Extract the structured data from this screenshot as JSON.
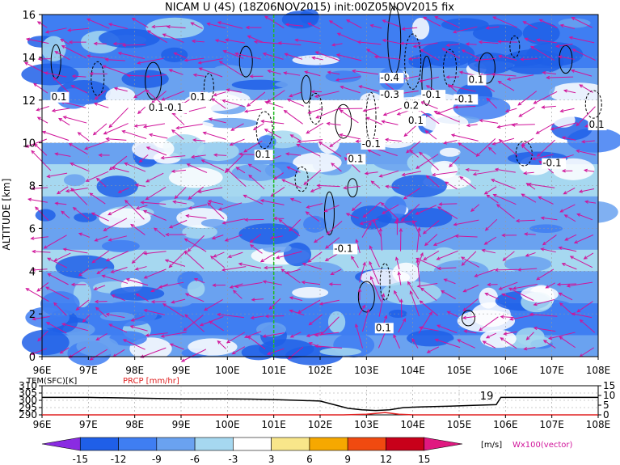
{
  "title": "NICAM U (4S) (18Z06NOV2015) init:00Z05NOV2015 fix",
  "chart_data": [
    {
      "type": "heatmap",
      "title": "NICAM U (4S) (18Z06NOV2015) init:00Z05NOV2015 fix",
      "ylabel": "ALTITUDE [km]",
      "x_ticks": [
        "96E",
        "97E",
        "98E",
        "99E",
        "100E",
        "101E",
        "102E",
        "103E",
        "104E",
        "105E",
        "106E",
        "107E",
        "108E"
      ],
      "y_ticks": [
        "0",
        "2",
        "4",
        "6",
        "8",
        "10",
        "12",
        "14",
        "16"
      ],
      "xlim": [
        96,
        108
      ],
      "ylim": [
        0,
        16
      ],
      "marker_longitude": 101,
      "layers": [
        {
          "alt_range": [
            0,
            1
          ],
          "u_value": -9
        },
        {
          "alt_range": [
            1,
            2.5
          ],
          "u_value": -12
        },
        {
          "alt_range": [
            2.5,
            4
          ],
          "u_value": -9
        },
        {
          "alt_range": [
            4,
            5
          ],
          "u_value": -6
        },
        {
          "alt_range": [
            5,
            7.5
          ],
          "u_value": -9
        },
        {
          "alt_range": [
            7.5,
            9
          ],
          "u_value": -6
        },
        {
          "alt_range": [
            9,
            10
          ],
          "u_value": -9
        },
        {
          "alt_range": [
            10,
            12
          ],
          "u_value": -3
        },
        {
          "alt_range": [
            12,
            13.5
          ],
          "u_value": -9
        },
        {
          "alt_range": [
            13.5,
            16
          ],
          "u_value": -12
        }
      ],
      "contour_labels": [
        {
          "text": "0.1",
          "lon": 96.2,
          "alt": 12.0
        },
        {
          "text": "0.1-0.1",
          "lon": 98.3,
          "alt": 11.5
        },
        {
          "text": "0.1",
          "lon": 99.2,
          "alt": 12.0
        },
        {
          "text": "0.1",
          "lon": 100.6,
          "alt": 9.3
        },
        {
          "text": "-0.4",
          "lon": 103.3,
          "alt": 12.9
        },
        {
          "text": "-0.3",
          "lon": 103.3,
          "alt": 12.1
        },
        {
          "text": "0.2",
          "lon": 103.8,
          "alt": 11.6
        },
        {
          "text": "-0.1",
          "lon": 104.2,
          "alt": 12.1
        },
        {
          "text": "-0.1",
          "lon": 104.9,
          "alt": 11.9
        },
        {
          "text": "0.1",
          "lon": 103.9,
          "alt": 10.9
        },
        {
          "text": "-0.1",
          "lon": 102.9,
          "alt": 9.8
        },
        {
          "text": "0.1",
          "lon": 102.6,
          "alt": 9.1
        },
        {
          "text": "0.1",
          "lon": 105.2,
          "alt": 12.8
        },
        {
          "text": "-0.1",
          "lon": 106.8,
          "alt": 8.9
        },
        {
          "text": "0.1",
          "lon": 107.8,
          "alt": 10.7
        },
        {
          "text": "-0.1",
          "lon": 102.3,
          "alt": 4.9
        },
        {
          "text": "0.1",
          "lon": 103.2,
          "alt": 1.2
        }
      ]
    },
    {
      "type": "line",
      "labels": {
        "tem": "TEM(SFC)[K]",
        "prcp": "PRCP [mm/hr]"
      },
      "x_ticks": [
        "96E",
        "97E",
        "98E",
        "99E",
        "100E",
        "101E",
        "102E",
        "103E",
        "104E",
        "105E",
        "106E",
        "107E",
        "108E"
      ],
      "y_left_ticks": [
        "310",
        "305",
        "300",
        "295",
        "290"
      ],
      "y_right_ticks": [
        "15",
        "10",
        "5",
        "0"
      ],
      "annotation": "19",
      "series": [
        {
          "name": "TEM(SFC)[K]",
          "x": [
            96,
            97,
            98,
            99,
            100,
            100.5,
            101,
            101.5,
            102,
            102.3,
            102.6,
            102.9,
            103.2,
            103.5,
            103.8,
            104.2,
            104.8,
            105.3,
            105.8,
            105.9,
            106,
            107,
            108
          ],
          "y": [
            302,
            302,
            301.5,
            301,
            301,
            300.8,
            300.5,
            300,
            299.5,
            297,
            294.5,
            293.5,
            293,
            293.5,
            295,
            295.5,
            296,
            296.5,
            297,
            302,
            302,
            302,
            302
          ]
        },
        {
          "name": "PRCP [mm/hr]",
          "x": [
            96,
            102.5,
            103,
            103.4,
            103.7,
            104,
            108
          ],
          "y": [
            0,
            0,
            0.3,
            1.2,
            0.3,
            0,
            0
          ]
        }
      ]
    },
    {
      "type": "colorbar",
      "ticks": [
        "-15",
        "-12",
        "-9",
        "-6",
        "-3",
        "3",
        "6",
        "9",
        "12",
        "15"
      ],
      "unit": "[m/s]",
      "vector_label": "Wx100(vector)",
      "colors": [
        "#8a2be2",
        "#1f5fe8",
        "#3f7ef2",
        "#6aa2f0",
        "#a6d8f0",
        "#ffffff",
        "#f8e68a",
        "#f6a800",
        "#f04a10",
        "#c8001a",
        "#e01880"
      ]
    }
  ]
}
